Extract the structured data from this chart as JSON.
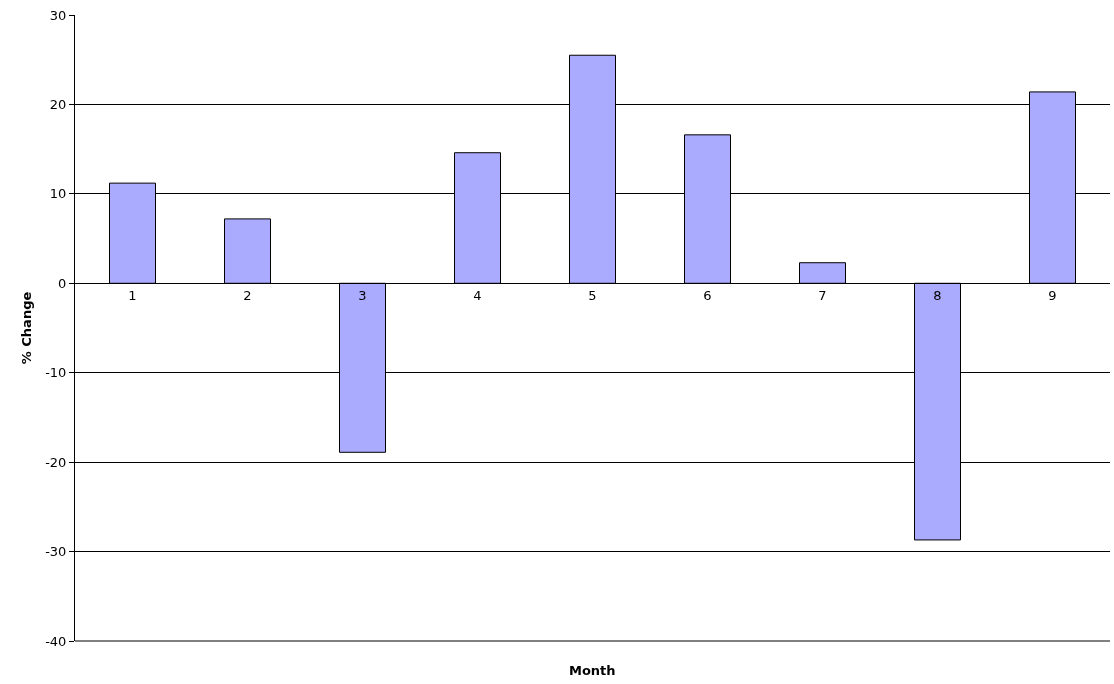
{
  "chart_data": {
    "type": "bar",
    "xlabel": "Month",
    "ylabel": "% Change",
    "categories": [
      "1",
      "2",
      "3",
      "4",
      "5",
      "6",
      "7",
      "8",
      "9"
    ],
    "values": [
      11.2,
      7.2,
      -18.9,
      14.6,
      25.5,
      16.6,
      2.3,
      -28.7,
      21.4
    ],
    "color": "#aaaaff",
    "ylim": [
      -40,
      30
    ],
    "yticks": [
      -40,
      -30,
      -20,
      -10,
      0,
      10,
      20,
      30
    ],
    "grid": "y",
    "legend": false
  }
}
